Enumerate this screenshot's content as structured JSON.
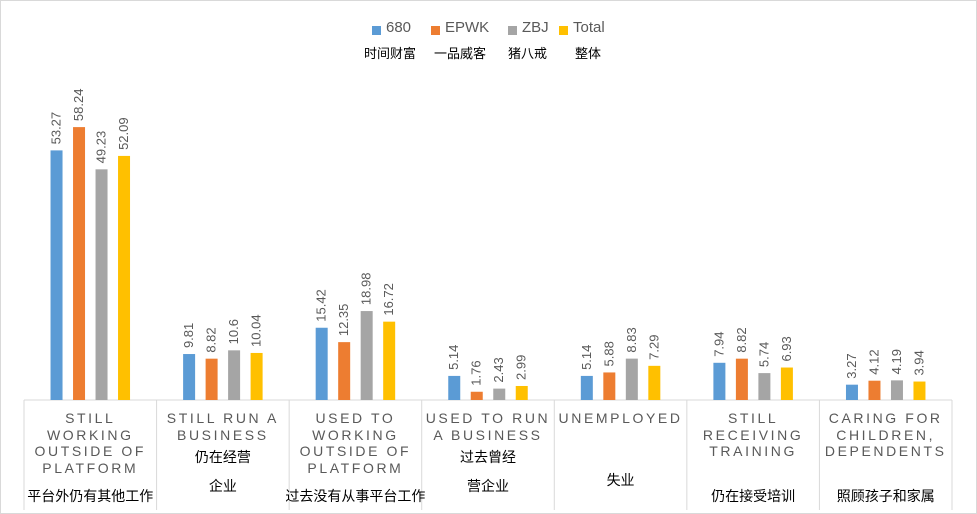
{
  "chart_data": {
    "type": "bar",
    "categories": [
      "STILL WORKING OUTSIDE OF PLATFORM",
      "STILL RUN A BUSINESS",
      "USED TO WORKING OUTSIDE OF PLATFORM",
      "USED TO RUN A BUSINESS",
      "UNEMPLOYED",
      "STILL RECEIVING TRAINING",
      "CARING FOR CHILDREN, DEPENDENTS"
    ],
    "categories_cn": [
      [
        "平台外仍有其他工作"
      ],
      [
        "仍在经营",
        "企业"
      ],
      [
        "过去没有从事平台工作"
      ],
      [
        "过去曾经",
        "营企业"
      ],
      [
        "失业"
      ],
      [
        "仍在接受培训"
      ],
      [
        "照顾孩子和家属"
      ]
    ],
    "series": [
      {
        "name": "680",
        "name_cn": "时间财富",
        "color": "#5b9bd5",
        "values": [
          53.27,
          9.81,
          15.42,
          5.14,
          5.14,
          7.94,
          3.27
        ]
      },
      {
        "name": "EPWK",
        "name_cn": "一品威客",
        "color": "#ed7d31",
        "values": [
          58.24,
          8.82,
          12.35,
          1.76,
          5.88,
          8.82,
          4.12
        ]
      },
      {
        "name": "ZBJ",
        "name_cn": "猪八戒",
        "color": "#a5a5a5",
        "values": [
          49.23,
          10.6,
          18.98,
          2.43,
          8.83,
          5.74,
          4.19
        ]
      },
      {
        "name": "Total",
        "name_cn": "整体",
        "color": "#ffc000",
        "values": [
          52.09,
          10.04,
          16.72,
          2.99,
          7.29,
          6.93,
          3.94
        ]
      }
    ],
    "labels": [
      [
        "53.27",
        "58.24",
        "49.23",
        "52.09"
      ],
      [
        "9.81",
        "8.82",
        "10.6",
        "10.04"
      ],
      [
        "15.42",
        "12.35",
        "18.98",
        "16.72"
      ],
      [
        "5.14",
        "1.76",
        "2.43",
        "2.99"
      ],
      [
        "5.14",
        "5.88",
        "8.83",
        "7.29"
      ],
      [
        "7.94",
        "8.82",
        "5.74",
        "6.93"
      ],
      [
        "3.27",
        "4.12",
        "4.19",
        "3.94"
      ]
    ],
    "title": "",
    "xlabel": "",
    "ylabel": "",
    "ylim": [
      0,
      70
    ],
    "grid": false,
    "legend_position": "top"
  }
}
